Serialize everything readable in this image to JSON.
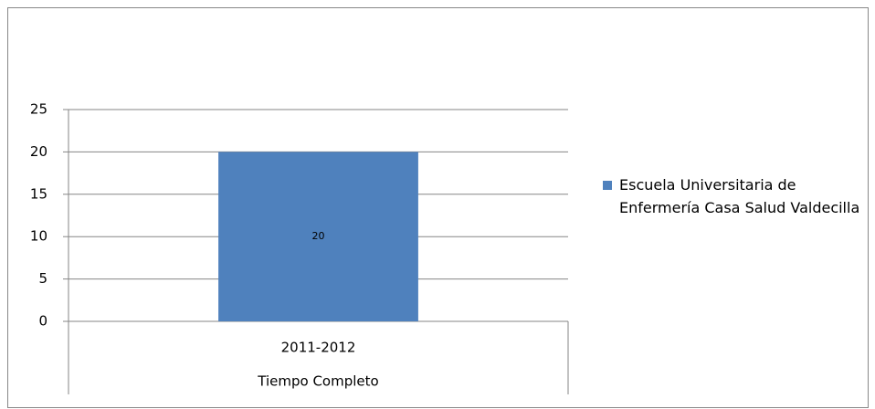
{
  "chart_data": {
    "type": "bar",
    "categories": [
      "2011-2012"
    ],
    "category_groups": [
      "Tiempo Completo"
    ],
    "series": [
      {
        "name": "Escuela Universitaria de Enfermería Casa Salud Valdecilla",
        "color": "#4f81bd",
        "values": [
          20
        ]
      }
    ],
    "ylim": [
      0,
      25
    ],
    "yticks": [
      0,
      5,
      10,
      15,
      20,
      25
    ],
    "grid": true,
    "legend": "right"
  }
}
